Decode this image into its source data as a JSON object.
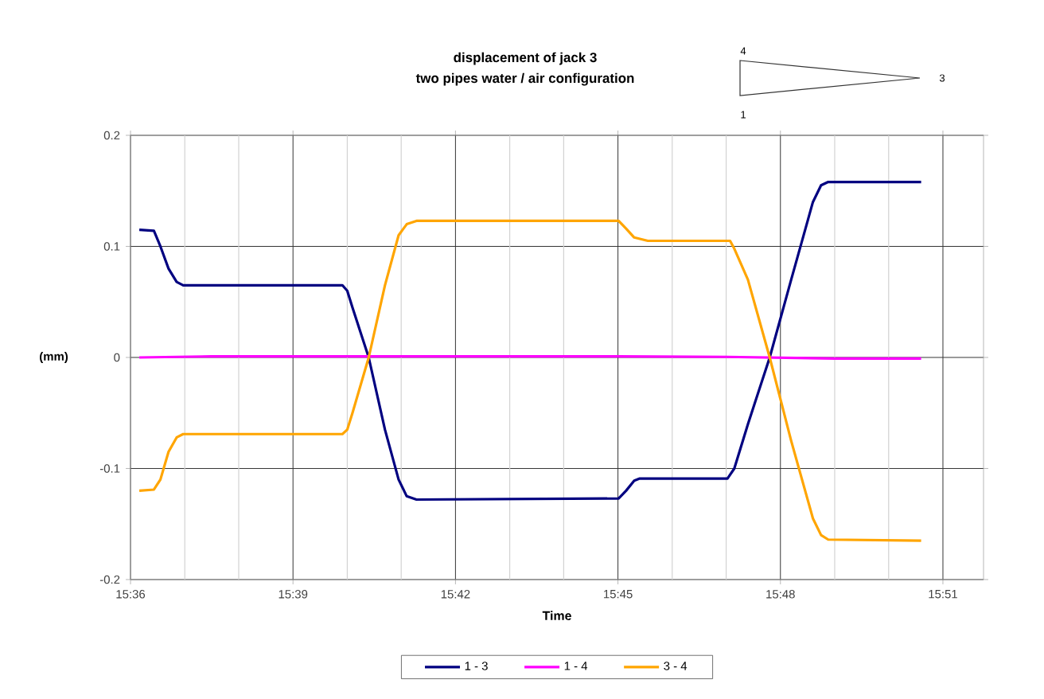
{
  "chart_data": {
    "type": "line",
    "title": "displacement of jack 3",
    "subtitle": "two pipes water / air configuration",
    "xlabel": "Time",
    "ylabel": "(mm)",
    "annotations": [
      "4",
      "3",
      "1"
    ],
    "xlim": [
      15.6,
      15.8625
    ],
    "ylim": [
      -0.2,
      0.2
    ],
    "xticks": [
      {
        "value": 15.6,
        "label": "15:36"
      },
      {
        "value": 15.6167,
        "label": null
      },
      {
        "value": 15.6333,
        "label": null
      },
      {
        "value": 15.65,
        "label": "15:39"
      },
      {
        "value": 15.6667,
        "label": null
      },
      {
        "value": 15.6833,
        "label": null
      },
      {
        "value": 15.7,
        "label": "15:42"
      },
      {
        "value": 15.7167,
        "label": null
      },
      {
        "value": 15.7333,
        "label": null
      },
      {
        "value": 15.75,
        "label": "15:45"
      },
      {
        "value": 15.7667,
        "label": null
      },
      {
        "value": 15.7833,
        "label": null
      },
      {
        "value": 15.8,
        "label": "15:48"
      },
      {
        "value": 15.8167,
        "label": null
      },
      {
        "value": 15.8333,
        "label": null
      },
      {
        "value": 15.85,
        "label": "15:51"
      }
    ],
    "yticks": [
      -0.2,
      -0.1,
      0,
      0.1,
      0.2
    ],
    "grid": true,
    "legend": "bottom",
    "marker": "none",
    "line_style": "solid",
    "series": [
      {
        "name": "1 - 3",
        "color": "#000080",
        "x": [
          15.6027,
          15.6072,
          15.6092,
          15.6117,
          15.6142,
          15.6162,
          15.6652,
          15.6667,
          15.6683,
          15.6733,
          15.6783,
          15.6825,
          15.685,
          15.688,
          15.7502,
          15.7525,
          15.755,
          15.7567,
          15.7837,
          15.7858,
          15.79,
          15.7967,
          15.8033,
          15.81,
          15.8125,
          15.8147,
          15.8433
        ],
        "values": [
          0.115,
          0.114,
          0.1,
          0.08,
          0.068,
          0.065,
          0.065,
          0.06,
          0.045,
          0.0,
          -0.065,
          -0.11,
          -0.125,
          -0.128,
          -0.127,
          -0.12,
          -0.111,
          -0.109,
          -0.109,
          -0.1,
          -0.06,
          0.0,
          0.07,
          0.14,
          0.155,
          0.158,
          0.158
        ]
      },
      {
        "name": "1 - 4",
        "color": "#ff00ff",
        "x": [
          15.6027,
          15.625,
          15.6833,
          15.75,
          15.7833,
          15.8167,
          15.8433
        ],
        "values": [
          0,
          0.001,
          0.001,
          0.001,
          0.0005,
          -0.001,
          -0.001
        ]
      },
      {
        "name": "3 - 4",
        "color": "#ffa500",
        "x": [
          15.6027,
          15.6072,
          15.6092,
          15.6117,
          15.6142,
          15.6162,
          15.6652,
          15.6667,
          15.6683,
          15.6733,
          15.6783,
          15.6825,
          15.685,
          15.688,
          15.7502,
          15.7525,
          15.755,
          15.7592,
          15.7845,
          15.7858,
          15.79,
          15.7967,
          15.8033,
          15.81,
          15.8125,
          15.8147,
          15.8433
        ],
        "values": [
          -0.12,
          -0.119,
          -0.11,
          -0.085,
          -0.072,
          -0.069,
          -0.069,
          -0.065,
          -0.05,
          0.0,
          0.065,
          0.11,
          0.12,
          0.123,
          0.123,
          0.116,
          0.108,
          0.105,
          0.105,
          0.098,
          0.07,
          0.0,
          -0.075,
          -0.145,
          -0.16,
          -0.164,
          -0.165
        ]
      }
    ]
  }
}
